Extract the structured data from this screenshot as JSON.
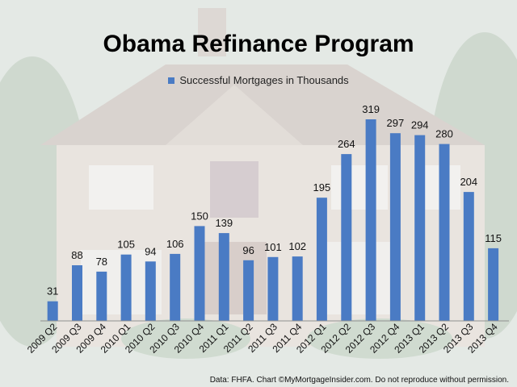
{
  "chart_data": {
    "type": "bar",
    "title": "Obama Refinance Program",
    "legend": [
      "Successful Mortgages in Thousands"
    ],
    "categories": [
      "2009 Q2",
      "2009 Q3",
      "2009 Q4",
      "2010 Q1",
      "2010 Q2",
      "2010 Q3",
      "2010 Q4",
      "2011 Q1",
      "2011 Q2",
      "2011 Q3",
      "2011 Q4",
      "2012 Q1",
      "2012 Q2",
      "2012 Q3",
      "2012 Q4",
      "2013 Q1",
      "2013 Q2",
      "2013 Q3",
      "2013 Q4"
    ],
    "series": [
      {
        "name": "Successful Mortgages in Thousands",
        "values": [
          31,
          88,
          78,
          105,
          94,
          106,
          150,
          139,
          96,
          101,
          102,
          195,
          264,
          319,
          297,
          294,
          280,
          204,
          115
        ]
      }
    ],
    "ylim": [
      0,
      330
    ],
    "legend_position": "top-center",
    "grid": false,
    "bar_color": "#4a7bc4",
    "source_note": "Data: FHFA. Chart ©MyMortgageInsider.com.  Do not reproduce  without  permission."
  }
}
